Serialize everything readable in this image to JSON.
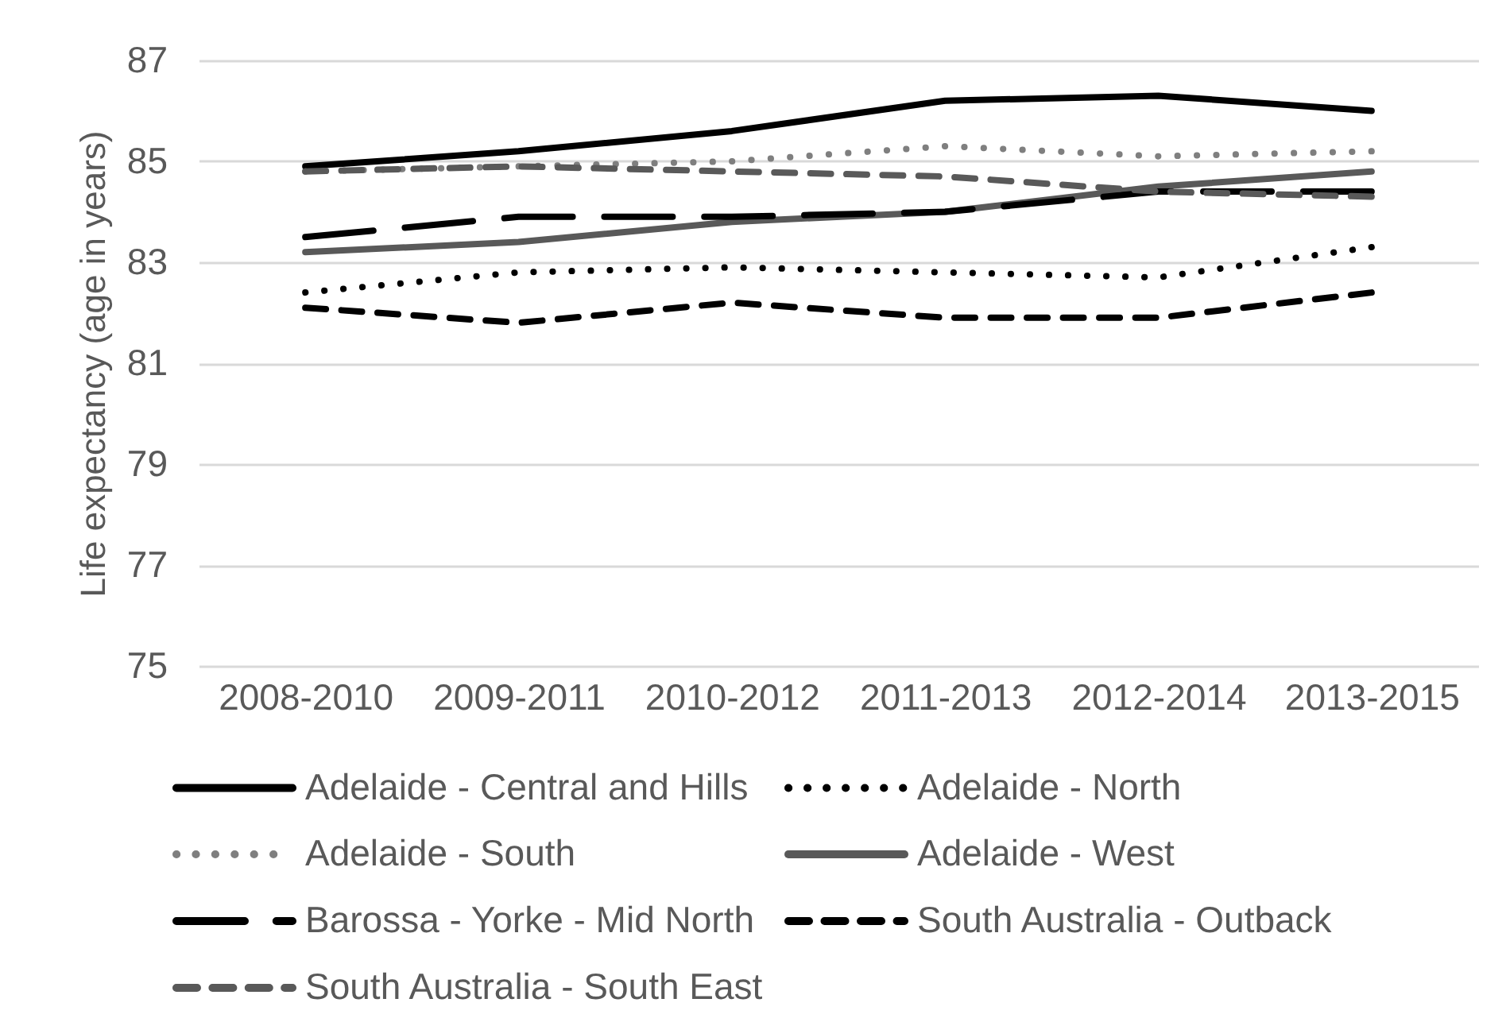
{
  "chart_data": {
    "type": "line",
    "ylabel": "Life expectancy (age in years)",
    "categories": [
      "2008-2010",
      "2009-2011",
      "2010-2012",
      "2011-2013",
      "2012-2014",
      "2013-2015"
    ],
    "series": [
      {
        "name": "Adelaide - Central and Hills",
        "color": "#000000",
        "line_style": "solid",
        "values": [
          84.9,
          85.2,
          85.6,
          86.2,
          86.3,
          86.0
        ]
      },
      {
        "name": "Adelaide - North",
        "color": "#000000",
        "line_style": "dotted",
        "values": [
          82.4,
          82.8,
          82.9,
          82.8,
          82.7,
          83.3
        ]
      },
      {
        "name": "Adelaide - South",
        "color": "#7f7f7f",
        "line_style": "dotted",
        "values": [
          84.8,
          84.9,
          85.0,
          85.3,
          85.1,
          85.2
        ]
      },
      {
        "name": "Adelaide - West",
        "color": "#595959",
        "line_style": "solid",
        "values": [
          83.2,
          83.4,
          83.8,
          84.0,
          84.5,
          84.8
        ]
      },
      {
        "name": "Barossa - Yorke - Mid North",
        "color": "#000000",
        "line_style": "longdash",
        "values": [
          83.5,
          83.9,
          83.9,
          84.0,
          84.4,
          84.4
        ]
      },
      {
        "name": "South Australia - Outback",
        "color": "#000000",
        "line_style": "dashed",
        "values": [
          82.1,
          81.8,
          82.2,
          81.9,
          81.9,
          82.4
        ]
      },
      {
        "name": "South Australia - South East",
        "color": "#595959",
        "line_style": "dashed",
        "values": [
          84.8,
          84.9,
          84.8,
          84.7,
          84.4,
          84.3
        ]
      }
    ],
    "ylim": [
      75,
      87
    ],
    "yticks": [
      75,
      77,
      79,
      81,
      83,
      85,
      87
    ],
    "grid": "y",
    "legend": "bottom",
    "marker": "none"
  }
}
